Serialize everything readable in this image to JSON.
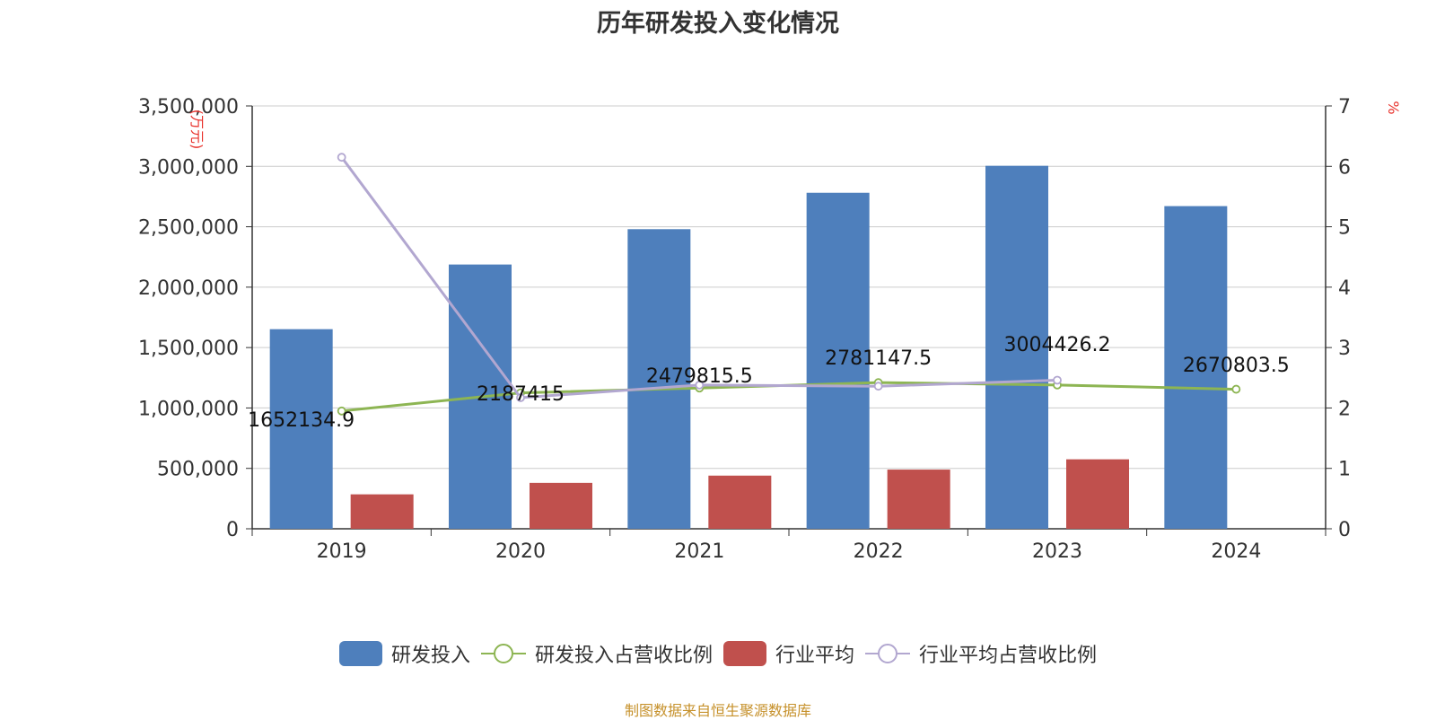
{
  "title": "历年研发投入变化情况",
  "source_note": "制图数据来自恒生聚源数据库",
  "chart_data": {
    "type": "bar",
    "categories": [
      "2019",
      "2020",
      "2021",
      "2022",
      "2023",
      "2024"
    ],
    "y_left": {
      "unit_label": "(万元)",
      "ylim": [
        0,
        3500000
      ],
      "ticks": [
        "0",
        "500,000",
        "1,000,000",
        "1,500,000",
        "2,000,000",
        "2,500,000",
        "3,000,000",
        "3,500,000"
      ]
    },
    "y_right": {
      "unit_label": "%",
      "ylim": [
        0,
        7
      ],
      "ticks": [
        "0",
        "1",
        "2",
        "3",
        "4",
        "5",
        "6",
        "7"
      ]
    },
    "grid": true,
    "legend_position": "bottom",
    "series": [
      {
        "name": "研发投入",
        "kind": "bar",
        "axis": "left",
        "color": "#4e7fbc",
        "values": [
          1652134.9,
          2187415,
          2479815.5,
          2781147.5,
          3004426.2,
          2670803.5
        ],
        "labels": [
          "1652134.9",
          "2187415",
          "2479815.5",
          "2781147.5",
          "3004426.2",
          "2670803.5"
        ]
      },
      {
        "name": "研发投入占营收比例",
        "kind": "line",
        "axis": "right",
        "color": "#8db553",
        "values": [
          1.95,
          2.25,
          2.33,
          2.42,
          2.38,
          2.31
        ]
      },
      {
        "name": "行业平均",
        "kind": "bar",
        "axis": "left",
        "color": "#c0504d",
        "values": [
          285000,
          380000,
          440000,
          490000,
          575000,
          null
        ]
      },
      {
        "name": "行业平均占营收比例",
        "kind": "line",
        "axis": "right",
        "color": "#b2a7d0",
        "values": [
          6.15,
          2.17,
          2.38,
          2.36,
          2.46,
          null
        ]
      }
    ]
  }
}
